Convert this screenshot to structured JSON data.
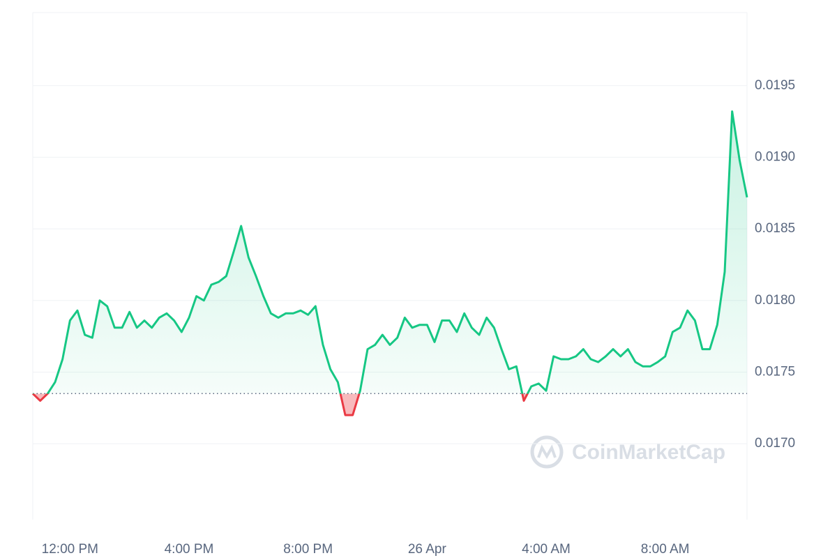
{
  "chart_data": {
    "type": "line",
    "watermark": "CoinMarketCap",
    "categories": [
      null,
      null,
      null,
      null,
      null,
      "12:00 PM",
      null,
      null,
      null,
      null,
      null,
      null,
      null,
      null,
      null,
      null,
      null,
      null,
      null,
      null,
      null,
      "4:00 PM",
      null,
      null,
      null,
      null,
      null,
      null,
      null,
      null,
      null,
      null,
      null,
      null,
      null,
      null,
      null,
      "8:00 PM",
      null,
      null,
      null,
      null,
      null,
      null,
      null,
      null,
      null,
      null,
      null,
      null,
      null,
      null,
      null,
      "26 Apr",
      null,
      null,
      null,
      null,
      null,
      null,
      null,
      null,
      null,
      null,
      null,
      null,
      null,
      null,
      null,
      "4:00 AM",
      null,
      null,
      null,
      null,
      null,
      null,
      null,
      null,
      null,
      null,
      null,
      null,
      null,
      null,
      null,
      "8:00 AM",
      null,
      null,
      null,
      null,
      null,
      null,
      null,
      null,
      null,
      null,
      null
    ],
    "values": [
      0.01735,
      0.0173,
      0.01735,
      0.01743,
      0.01759,
      0.01786,
      0.01793,
      0.01776,
      0.01774,
      0.018,
      0.01796,
      0.01781,
      0.01781,
      0.01792,
      0.01781,
      0.01786,
      0.01781,
      0.01788,
      0.01791,
      0.01786,
      0.01778,
      0.01788,
      0.01803,
      0.018,
      0.01811,
      0.01813,
      0.01817,
      0.01834,
      0.01852,
      0.0183,
      0.01817,
      0.01803,
      0.01791,
      0.01788,
      0.01791,
      0.01791,
      0.01793,
      0.0179,
      0.01796,
      0.01769,
      0.01752,
      0.01743,
      0.0172,
      0.0172,
      0.01737,
      0.01766,
      0.01769,
      0.01776,
      0.01769,
      0.01774,
      0.01788,
      0.01781,
      0.01783,
      0.01783,
      0.01771,
      0.01786,
      0.01786,
      0.01778,
      0.01791,
      0.01781,
      0.01776,
      0.01788,
      0.01781,
      0.01766,
      0.01752,
      0.01754,
      0.0173,
      0.0174,
      0.01742,
      0.01737,
      0.01761,
      0.01759,
      0.01759,
      0.01761,
      0.01766,
      0.01759,
      0.01757,
      0.01761,
      0.01766,
      0.01761,
      0.01766,
      0.01757,
      0.01754,
      0.01754,
      0.01757,
      0.01761,
      0.01778,
      0.01781,
      0.01793,
      0.01786,
      0.01766,
      0.01766,
      0.01783,
      0.0182,
      0.01932,
      0.01898,
      0.01872
    ],
    "baseline": 0.01735,
    "up_color": "#16c784",
    "down_color": "#ea3943",
    "ylim": [
      0.01647,
      0.02001
    ],
    "yticks": [
      {
        "value": 0.017,
        "label": "0.0170"
      },
      0.0175,
      {
        "value": 0.018,
        "label": "0.0180"
      },
      0.0185,
      {
        "value": 0.019,
        "label": "0.0190"
      },
      0.0195
    ],
    "grid": true
  }
}
